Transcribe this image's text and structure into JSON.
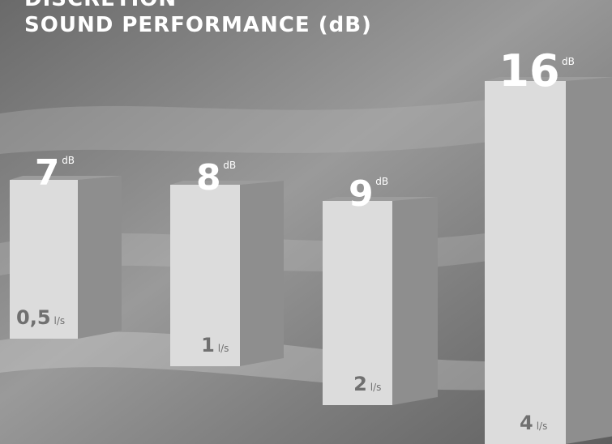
{
  "title_lines": [
    "DISCRETION",
    "SOUND PERFORMANCE (dB)"
  ],
  "chart_data": {
    "type": "bar",
    "title": "SOUND PERFORMANCE (dB)",
    "value_unit": "dB",
    "category_unit": "l/s",
    "categories": [
      "0,5",
      "1",
      "2",
      "4"
    ],
    "values": [
      7,
      8,
      9,
      16
    ],
    "colors": {
      "bar_front": "#dcdcdc",
      "bar_side": "#8e8e8e",
      "bar_top": "#9c9c9c",
      "category_text": "#707070",
      "value_text": "#ffffff"
    }
  }
}
